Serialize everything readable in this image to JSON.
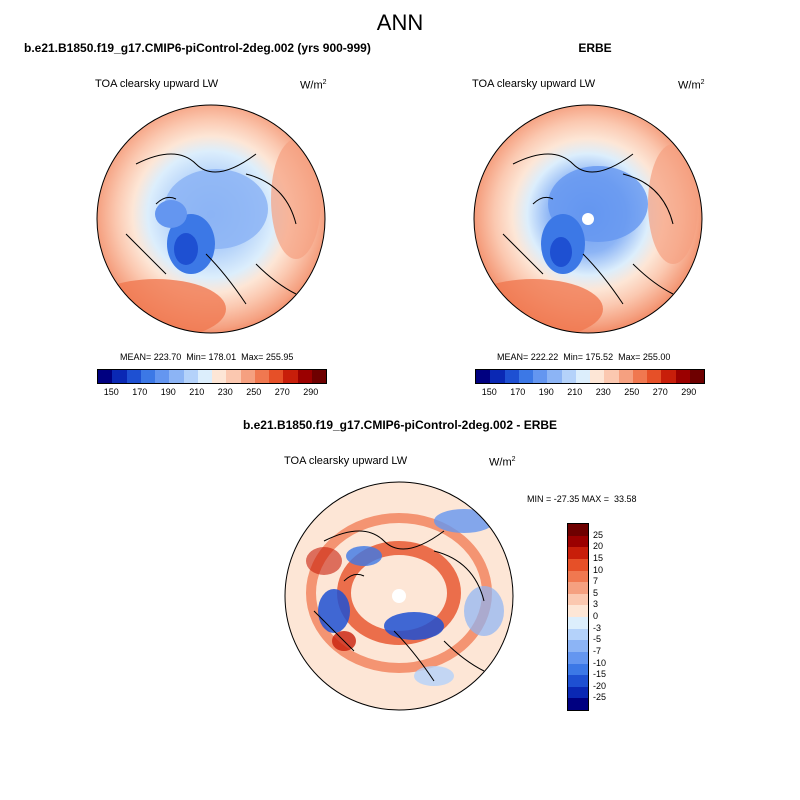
{
  "title": "ANN",
  "panels": {
    "model": {
      "title": "b.e21.B1850.f19_g17.CMIP6-piControl-2deg.002 (yrs 900-999)",
      "variable": "TOA clearsky upward LW",
      "units_base": "W/m",
      "units_exp": "2",
      "stats": "MEAN= 223.70  Min= 178.01  Max= 255.95"
    },
    "obs": {
      "title": "ERBE",
      "variable": "TOA clearsky upward LW",
      "units_base": "W/m",
      "units_exp": "2",
      "stats": "MEAN= 222.22  Min= 175.52  Max= 255.00"
    },
    "diff": {
      "title": "b.e21.B1850.f19_g17.CMIP6-piControl-2deg.002 - ERBE",
      "variable": "TOA clearsky upward LW",
      "units_base": "W/m",
      "units_exp": "2",
      "stats": "MIN = -27.35 MAX =  33.58"
    }
  },
  "colorbar_abs": {
    "colors": [
      "#000080",
      "#0a28b4",
      "#1e50d2",
      "#3c78e6",
      "#6496f0",
      "#8cb4f5",
      "#b4d2fa",
      "#dceefc",
      "#fde6d6",
      "#fbc8b0",
      "#f5a080",
      "#f07850",
      "#e65028",
      "#c81e0a",
      "#9b0000",
      "#6e0000"
    ],
    "ticks": [
      "150",
      "170",
      "190",
      "210",
      "230",
      "250",
      "270",
      "290"
    ]
  },
  "colorbar_diff": {
    "colors": [
      "#6e0000",
      "#9b0000",
      "#c81e0a",
      "#e65028",
      "#f07850",
      "#f5a080",
      "#fbc8b0",
      "#fde6d6",
      "#dceefc",
      "#b4d2fa",
      "#8cb4f5",
      "#6496f0",
      "#3c78e6",
      "#1e50d2",
      "#0a28b4",
      "#000080"
    ],
    "ticks": [
      "25",
      "20",
      "15",
      "10",
      "7",
      "5",
      "3",
      "0",
      "-3",
      "-5",
      "-7",
      "-10",
      "-15",
      "-20",
      "-25"
    ]
  }
}
